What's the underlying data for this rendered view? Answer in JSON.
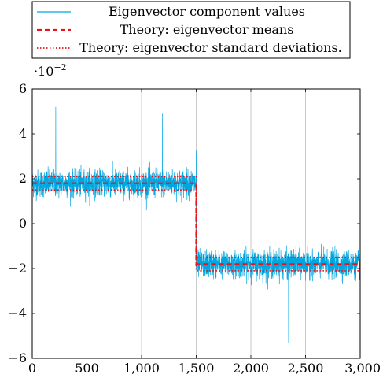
{
  "chart_data": {
    "type": "line",
    "title": "",
    "xlabel": "",
    "ylabel": "",
    "y_scale_label": "·10",
    "y_scale_exponent": "−2",
    "xlim": [
      0,
      3000
    ],
    "ylim": [
      -6,
      6
    ],
    "x_ticks": [
      0,
      500,
      1000,
      1500,
      2000,
      2500,
      3000
    ],
    "x_tick_labels": [
      "0",
      "500",
      "1,000",
      "1,500",
      "2,000",
      "2,500",
      "3,000"
    ],
    "y_ticks": [
      -6,
      -4,
      -2,
      0,
      2,
      4,
      6
    ],
    "y_tick_labels": [
      "−6",
      "−4",
      "−2",
      "0",
      "2",
      "4",
      "6"
    ],
    "grid": "vertical",
    "legend_position": "top",
    "series": [
      {
        "name": "Eigenvector component values",
        "style": "solid",
        "color": "#00a6e0",
        "n_points": 3000,
        "segments": [
          {
            "x_range": [
              0,
              1500
            ],
            "mean": 1.8,
            "std": 0.3
          },
          {
            "x_range": [
              1500,
              3000
            ],
            "mean": -1.8,
            "std": 0.3
          }
        ],
        "notable_values": [
          {
            "x": 215,
            "y": 5.2
          },
          {
            "x": 1190,
            "y": 4.9
          },
          {
            "x": 1500,
            "y": 3.25
          },
          {
            "x": 2345,
            "y": -5.3
          }
        ]
      },
      {
        "name": "Theory: eigenvector means",
        "style": "dashed",
        "color": "#e8141b",
        "x": [
          0,
          1500,
          1500,
          3000
        ],
        "y": [
          1.8,
          1.8,
          -1.8,
          -1.8
        ]
      },
      {
        "name": "Theory: eigenvector standard deviations.",
        "style": "dotted",
        "color": "#e8141b",
        "lines": [
          {
            "x": [
              0,
              1500,
              1500,
              3000
            ],
            "y": [
              2.1,
              2.1,
              -1.5,
              -1.5
            ]
          },
          {
            "x": [
              0,
              1500,
              1500,
              3000
            ],
            "y": [
              1.5,
              1.5,
              -2.1,
              -2.1
            ]
          }
        ]
      }
    ]
  }
}
